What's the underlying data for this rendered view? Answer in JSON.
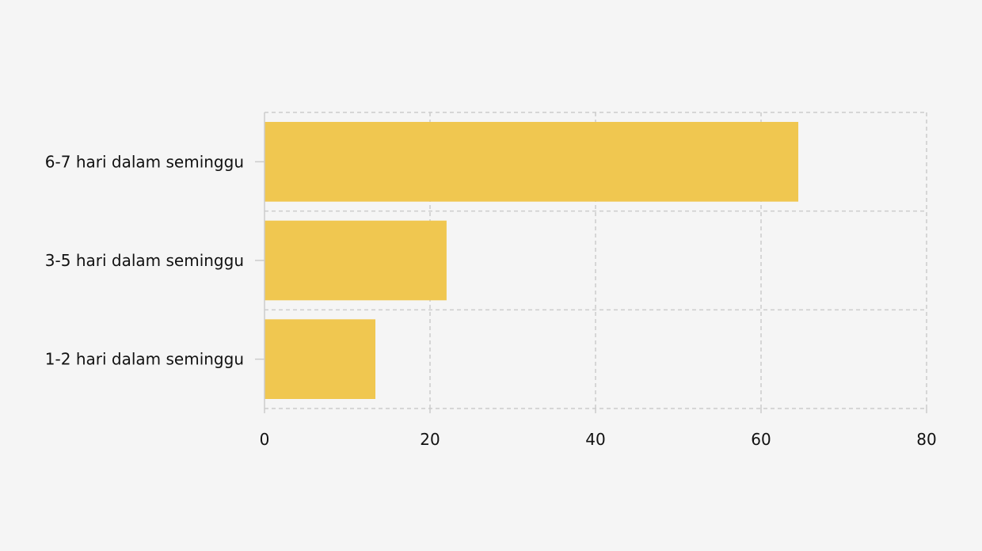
{
  "chart_data": {
    "type": "bar",
    "orientation": "horizontal",
    "categories": [
      "6-7 hari dalam seminggu",
      "3-5 hari dalam seminggu",
      "1-2 hari dalam seminggu"
    ],
    "values": [
      64.5,
      22,
      13.4
    ],
    "xlim": [
      0,
      80
    ],
    "xticks": [
      0,
      20,
      40,
      60,
      80
    ],
    "grid": true,
    "bar_color": "#f0c750",
    "grid_color": "#cccccc",
    "axis_color": "#cccccc"
  }
}
